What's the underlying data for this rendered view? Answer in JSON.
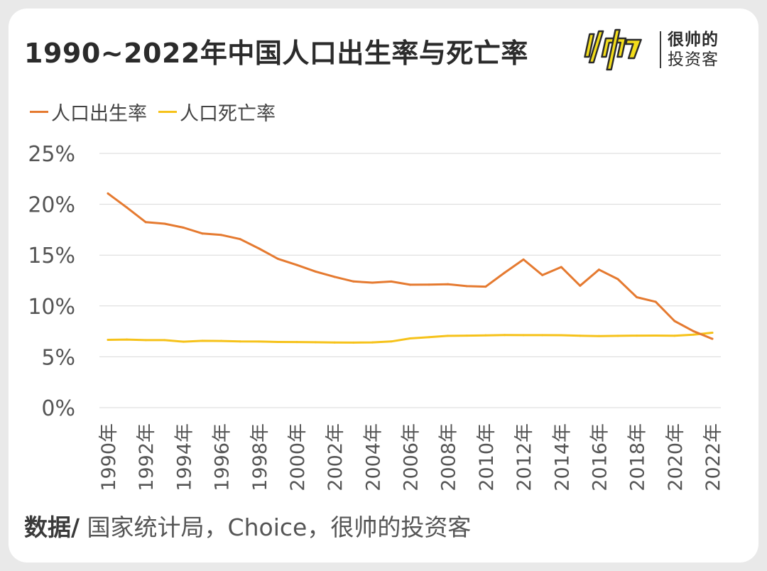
{
  "title": "1990~2022年中国人口出生率与死亡率",
  "brand": {
    "line1": "很帅的",
    "line2": "投资客",
    "logo_icon": "shuai-logo-icon"
  },
  "source": {
    "label": "数据/",
    "text": " 国家统计局，Choice，很帅的投资客"
  },
  "colors": {
    "birth": "#e57a30",
    "death": "#f6c21a",
    "grid": "#d9d9d9",
    "axis_text": "#555555",
    "logo_yellow": "#f3dd1b"
  },
  "chart_data": {
    "type": "line",
    "title": "1990~2022年中国人口出生率与死亡率",
    "xlabel": "",
    "ylabel": "",
    "x": [
      "1990年",
      "1991年",
      "1992年",
      "1993年",
      "1994年",
      "1995年",
      "1996年",
      "1997年",
      "1998年",
      "1999年",
      "2000年",
      "2001年",
      "2002年",
      "2003年",
      "2004年",
      "2005年",
      "2006年",
      "2007年",
      "2008年",
      "2009年",
      "2010年",
      "2011年",
      "2012年",
      "2013年",
      "2014年",
      "2015年",
      "2016年",
      "2017年",
      "2018年",
      "2019年",
      "2020年",
      "2021年",
      "2022年"
    ],
    "x_tick_labels": [
      "1990年",
      "1992年",
      "1994年",
      "1996年",
      "1998年",
      "2000年",
      "2002年",
      "2004年",
      "2006年",
      "2008年",
      "2010年",
      "2012年",
      "2014年",
      "2016年",
      "2018年",
      "2020年",
      "2022年"
    ],
    "ylim": [
      0,
      25
    ],
    "y_ticks": [
      "0%",
      "5%",
      "10%",
      "15%",
      "20%",
      "25%"
    ],
    "grid": true,
    "legend_position": "top-left",
    "series": [
      {
        "name": "人口出生率",
        "values": [
          21.06,
          19.68,
          18.24,
          18.09,
          17.7,
          17.12,
          16.98,
          16.57,
          15.64,
          14.64,
          14.03,
          13.38,
          12.86,
          12.41,
          12.29,
          12.4,
          12.09,
          12.1,
          12.14,
          11.95,
          11.9,
          13.27,
          14.57,
          13.03,
          13.83,
          11.99,
          13.57,
          12.64,
          10.86,
          10.41,
          8.52,
          7.52,
          6.77
        ]
      },
      {
        "name": "人口死亡率",
        "values": [
          6.67,
          6.7,
          6.64,
          6.64,
          6.49,
          6.57,
          6.56,
          6.51,
          6.5,
          6.46,
          6.45,
          6.43,
          6.41,
          6.4,
          6.42,
          6.51,
          6.81,
          6.93,
          7.06,
          7.08,
          7.11,
          7.14,
          7.13,
          7.13,
          7.12,
          7.07,
          7.04,
          7.06,
          7.08,
          7.09,
          7.07,
          7.18,
          7.37
        ]
      }
    ]
  }
}
